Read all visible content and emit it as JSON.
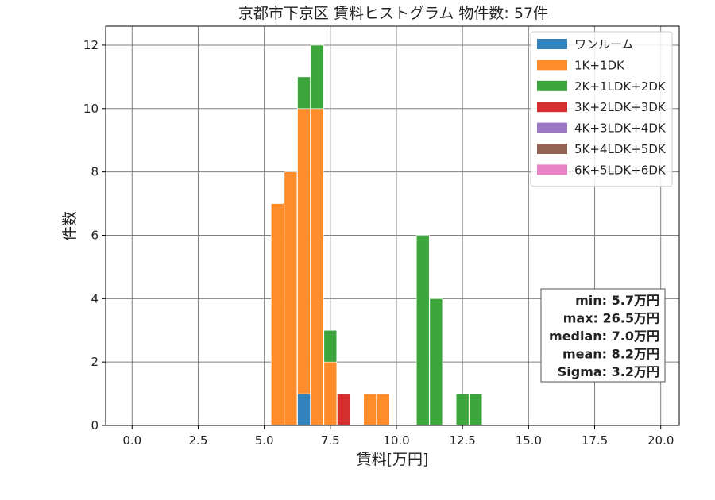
{
  "chart_data": {
    "type": "bar",
    "title": "京都市下京区 賃料ヒストグラム  物件数: 57件",
    "xlabel": "賃料[万円]",
    "ylabel": "件数",
    "xlim": [
      -1.0,
      20.7
    ],
    "ylim": [
      0,
      12.6
    ],
    "xticks": [
      0.0,
      2.5,
      5.0,
      7.5,
      10.0,
      12.5,
      15.0,
      17.5,
      20.0
    ],
    "xtick_labels": [
      "0.0",
      "2.5",
      "5.0",
      "7.5",
      "10.0",
      "12.5",
      "15.0",
      "17.5",
      "20.0"
    ],
    "yticks": [
      0,
      2,
      4,
      6,
      8,
      10,
      12
    ],
    "ytick_labels": [
      "0",
      "2",
      "4",
      "6",
      "8",
      "10",
      "12"
    ],
    "grid": true,
    "stacked": true,
    "bin_width": 0.5,
    "legend_position": "top-right",
    "series": [
      {
        "name": "ワンルーム",
        "color": "#3182bd",
        "points": [
          {
            "x": 6.5,
            "y": 1
          }
        ]
      },
      {
        "name": "1K+1DK",
        "color": "#ff8c2a",
        "points": [
          {
            "x": 5.5,
            "y": 7
          },
          {
            "x": 6.0,
            "y": 8
          },
          {
            "x": 6.5,
            "y": 9
          },
          {
            "x": 7.0,
            "y": 10
          },
          {
            "x": 7.5,
            "y": 2
          },
          {
            "x": 9.0,
            "y": 1
          },
          {
            "x": 9.5,
            "y": 1
          }
        ]
      },
      {
        "name": "2K+1LDK+2DK",
        "color": "#3ca53c",
        "points": [
          {
            "x": 6.5,
            "y": 1
          },
          {
            "x": 7.0,
            "y": 2
          },
          {
            "x": 7.5,
            "y": 1
          },
          {
            "x": 11.0,
            "y": 6
          },
          {
            "x": 11.5,
            "y": 4
          },
          {
            "x": 12.5,
            "y": 1
          },
          {
            "x": 13.0,
            "y": 1
          }
        ]
      },
      {
        "name": "3K+2LDK+3DK",
        "color": "#d62f2f",
        "points": [
          {
            "x": 8.0,
            "y": 1
          }
        ]
      },
      {
        "name": "4K+3LDK+4DK",
        "color": "#9d78c6",
        "points": []
      },
      {
        "name": "5K+4LDK+5DK",
        "color": "#936355",
        "points": []
      },
      {
        "name": "6K+5LDK+6DK",
        "color": "#e883c6",
        "points": []
      }
    ],
    "stats": [
      "min: 5.7万円",
      "max: 26.5万円",
      "median: 7.0万円",
      "mean: 8.2万円",
      "Sigma: 3.2万円"
    ]
  }
}
